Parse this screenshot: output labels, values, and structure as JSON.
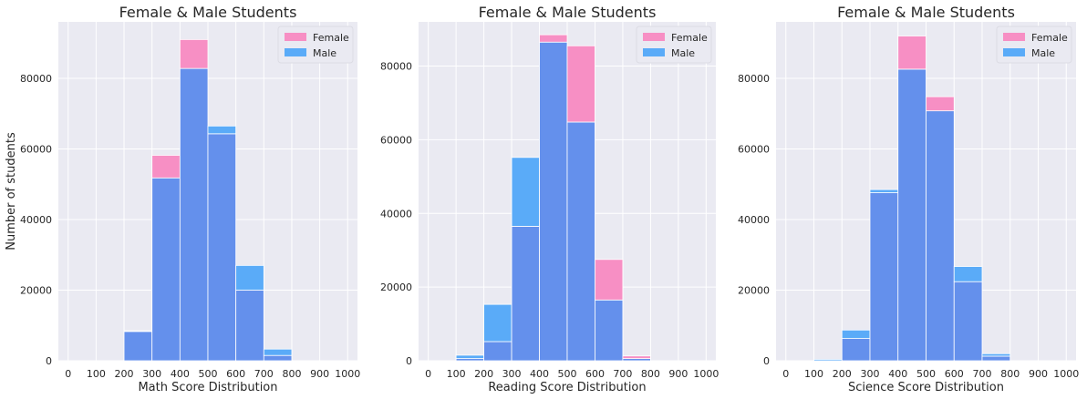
{
  "colors": {
    "background": "#eaeaf2",
    "grid": "#ffffff",
    "female": "#f78fc4",
    "male": "#5aabf8",
    "overlap": "#6490ec",
    "text": "#262626"
  },
  "chart_data": [
    {
      "type": "bar",
      "title": "Female & Male Students",
      "xlabel": "Math Score Distribution",
      "ylabel": "Number of students",
      "xlim": [
        -35,
        1035
      ],
      "ylim": [
        0,
        96000
      ],
      "xticks": [
        0,
        100,
        200,
        300,
        400,
        500,
        600,
        700,
        800,
        900,
        1000
      ],
      "yticks": [
        0,
        20000,
        40000,
        60000,
        80000
      ],
      "grid": true,
      "legend_position": "top-right",
      "bin_edges": [
        0,
        100,
        200,
        300,
        400,
        500,
        600,
        700,
        800,
        900,
        1000
      ],
      "series": [
        {
          "name": "Female",
          "values": [
            0,
            0,
            8300,
            58200,
            91000,
            64300,
            20000,
            1500,
            0,
            0
          ]
        },
        {
          "name": "Male",
          "values": [
            0,
            0,
            8500,
            51800,
            82800,
            66500,
            27000,
            3300,
            0,
            0
          ]
        }
      ]
    },
    {
      "type": "bar",
      "title": "Female & Male Students",
      "xlabel": "Reading Score Distribution",
      "ylabel": "",
      "xlim": [
        -35,
        1035
      ],
      "ylim": [
        0,
        92000
      ],
      "xticks": [
        0,
        100,
        200,
        300,
        400,
        500,
        600,
        700,
        800,
        900,
        1000
      ],
      "yticks": [
        0,
        20000,
        40000,
        60000,
        80000
      ],
      "grid": true,
      "legend_position": "top-right",
      "bin_edges": [
        0,
        100,
        200,
        300,
        400,
        500,
        600,
        700,
        800,
        900,
        1000
      ],
      "series": [
        {
          "name": "Female",
          "values": [
            0,
            600,
            5200,
            36500,
            88500,
            85500,
            27500,
            1300,
            0,
            0
          ]
        },
        {
          "name": "Male",
          "values": [
            0,
            1500,
            15300,
            55200,
            86500,
            64800,
            16500,
            600,
            0,
            0
          ]
        }
      ]
    },
    {
      "type": "bar",
      "title": "Female & Male Students",
      "xlabel": "Science Score Distribution",
      "ylabel": "",
      "xlim": [
        -35,
        1035
      ],
      "ylim": [
        0,
        96000
      ],
      "xticks": [
        0,
        100,
        200,
        300,
        400,
        500,
        600,
        700,
        800,
        900,
        1000
      ],
      "yticks": [
        0,
        20000,
        40000,
        60000,
        80000
      ],
      "grid": true,
      "legend_position": "top-right",
      "bin_edges": [
        0,
        100,
        200,
        300,
        400,
        500,
        600,
        700,
        800,
        900,
        1000
      ],
      "series": [
        {
          "name": "Female",
          "values": [
            0,
            0,
            6300,
            47600,
            92000,
            74800,
            22400,
            1300,
            0,
            0
          ]
        },
        {
          "name": "Male",
          "values": [
            0,
            400,
            8700,
            48500,
            82600,
            70800,
            26700,
            2000,
            0,
            0
          ]
        }
      ]
    }
  ]
}
